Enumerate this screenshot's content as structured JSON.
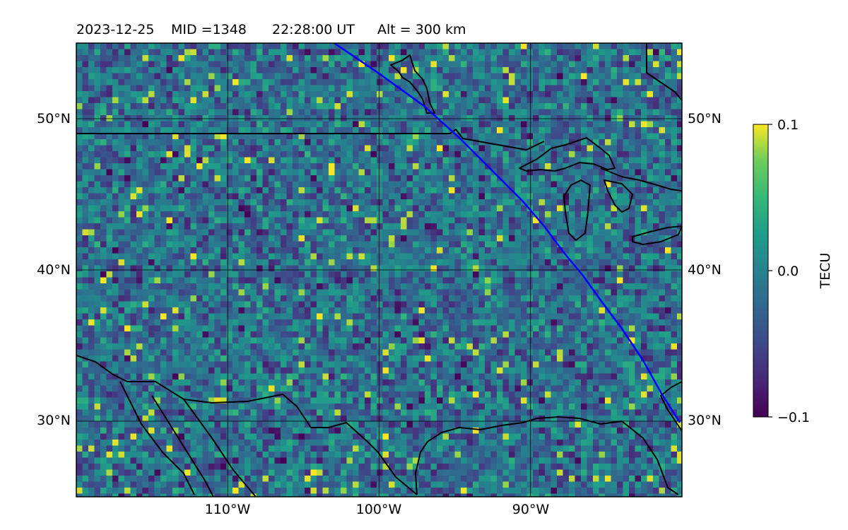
{
  "title": {
    "date": "2023-12-25",
    "mid": "MID =1348",
    "time": "22:28:00  UT",
    "alt": "Alt = 300 km"
  },
  "map": {
    "lon_range": [
      -120,
      -80
    ],
    "lat_range": [
      25,
      55
    ],
    "lat_labels": [
      "30°N",
      "40°N",
      "50°N"
    ],
    "lat_values": [
      30,
      40,
      50
    ],
    "lon_labels": [
      "110°W",
      "100°W",
      "90°W"
    ],
    "lon_values": [
      -110,
      -100,
      -90
    ],
    "track_color": "#0000ff",
    "coastline_color": "#000000",
    "field_units": "TECU"
  },
  "colorbar": {
    "label": "TECU",
    "max_label": "0.1",
    "mid_label": "0.0",
    "min_label": "−0.1",
    "vmin": -0.1,
    "vmax": 0.1,
    "colormap": "viridis"
  }
}
